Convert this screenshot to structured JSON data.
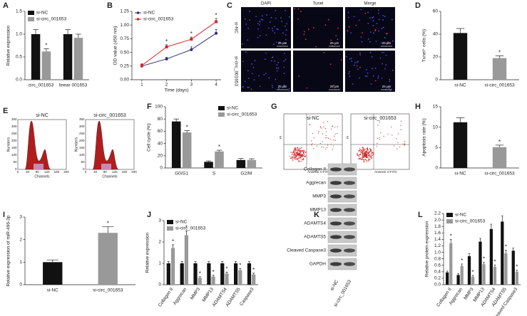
{
  "chart_data": [
    {
      "panel": "A",
      "type": "bar",
      "ylabel": "Relative expression",
      "categories": [
        "circ_001653",
        "linear 001653"
      ],
      "series": [
        {
          "name": "si-NC",
          "color": "#111111",
          "values": [
            1.0,
            1.0
          ],
          "errors": [
            0.1,
            0.1
          ],
          "annotations": [
            null,
            null
          ]
        },
        {
          "name": "si-circ_001653",
          "color": "#999999",
          "values": [
            0.62,
            0.92
          ],
          "errors": [
            0.06,
            0.08
          ],
          "annotations": [
            "*",
            null
          ]
        }
      ],
      "ylim": [
        0,
        1.5
      ],
      "yticks": [
        {
          "value": 0,
          "label": "0.0"
        },
        {
          "value": 0.5,
          "label": "0.5"
        },
        {
          "value": 1,
          "label": "1.0"
        },
        {
          "value": 1.5,
          "label": "1.5"
        }
      ],
      "legend": "top-left"
    },
    {
      "panel": "B",
      "type": "line",
      "xlabel": "Time (days)",
      "ylabel": "OD value (450 nm)",
      "x": [
        1,
        2,
        3,
        4
      ],
      "series": [
        {
          "name": "si-NC",
          "color": "#2b2b7a",
          "values": [
            0.25,
            0.38,
            0.55,
            0.85
          ],
          "errors": [
            0.03,
            0.03,
            0.05,
            0.07
          ],
          "annotations": [
            null,
            null,
            null,
            null
          ]
        },
        {
          "name": "si-circ_001653",
          "color": "#d62728",
          "values": [
            0.26,
            0.6,
            0.74,
            1.06
          ],
          "errors": [
            0.03,
            0.04,
            0.04,
            0.06
          ],
          "annotations": [
            null,
            "*",
            "*",
            "*"
          ]
        }
      ],
      "xlim": [
        0.6,
        4.2
      ],
      "xticks": [
        1,
        2,
        3,
        4
      ],
      "ylim": [
        0,
        1.25
      ],
      "yticks": [
        {
          "value": 0,
          "label": "0.00"
        },
        {
          "value": 0.25,
          "label": "0.25"
        },
        {
          "value": 0.5,
          "label": "0.50"
        },
        {
          "value": 0.75,
          "label": "0.75"
        },
        {
          "value": 1,
          "label": "1.00"
        },
        {
          "value": 1.25,
          "label": "1.25"
        }
      ],
      "legend": "top-left"
    },
    {
      "panel": "D",
      "type": "bar",
      "ylabel": "Tunel⁺ cells (%)",
      "categories": [
        "si-NC",
        "si-circ_001653"
      ],
      "values": [
        41,
        19
      ],
      "errors": [
        4,
        2
      ],
      "colors": [
        "#111111",
        "#999999"
      ],
      "annotations": [
        null,
        "*"
      ],
      "ylim": [
        0,
        60
      ],
      "yticks": [
        0,
        20,
        40,
        60
      ]
    },
    {
      "panel": "F",
      "type": "bar",
      "ylabel": "Cell cycle (%)",
      "categories": [
        "G0/G1",
        "S",
        "G2/M"
      ],
      "series": [
        {
          "name": "si-NC",
          "color": "#111111",
          "values": [
            76,
            10,
            13
          ],
          "errors": [
            4,
            1.5,
            2.5
          ],
          "annotations": [
            null,
            null,
            null
          ]
        },
        {
          "name": "si-circ_001653",
          "color": "#999999",
          "values": [
            58,
            27,
            13
          ],
          "errors": [
            3,
            2,
            2
          ],
          "annotations": [
            "*",
            "*",
            null
          ]
        }
      ],
      "ylim": [
        0,
        100
      ],
      "yticks": [
        0,
        20,
        40,
        60,
        80,
        100
      ],
      "legend": "top-right"
    },
    {
      "panel": "H",
      "type": "bar",
      "ylabel": "Apoptosis rate (%)",
      "categories": [
        "si-NC",
        "si-circ_001653"
      ],
      "values": [
        11.2,
        5.1
      ],
      "errors": [
        1.1,
        0.5
      ],
      "colors": [
        "#111111",
        "#999999"
      ],
      "annotations": [
        null,
        "*"
      ],
      "ylim": [
        0,
        15
      ],
      "yticks": [
        0,
        5,
        10,
        15
      ]
    },
    {
      "panel": "I",
      "type": "bar",
      "ylabel": "Relative expression of miR-496-3p",
      "categories": [
        "si-NC",
        "si-circ_001653"
      ],
      "values": [
        1.0,
        2.3
      ],
      "errors": [
        0.1,
        0.28
      ],
      "colors": [
        "#111111",
        "#999999"
      ],
      "annotations": [
        null,
        "*"
      ],
      "ylim": [
        0,
        3
      ],
      "yticks": [
        0,
        1,
        2,
        3
      ]
    },
    {
      "panel": "J",
      "type": "bar",
      "ylabel": "Relative expression",
      "categories": [
        "Collagen II",
        "Aggrecan",
        "MMP3",
        "MMP13",
        "ADAMTS4",
        "ADAMTS5",
        "Caspase3"
      ],
      "series": [
        {
          "name": "si-NC",
          "color": "#111111",
          "values": [
            1,
            1,
            1,
            1,
            1,
            1,
            1
          ],
          "errors": [
            0.08,
            0.08,
            0.08,
            0.08,
            0.08,
            0.08,
            0.08
          ],
          "annotations": [
            null,
            null,
            null,
            null,
            null,
            null,
            null
          ]
        },
        {
          "name": "si-circ_001653",
          "color": "#999999",
          "values": [
            1.72,
            2.32,
            0.32,
            0.38,
            0.52,
            0.68,
            0.48
          ],
          "errors": [
            0.15,
            0.2,
            0.05,
            0.06,
            0.06,
            0.08,
            0.06
          ],
          "annotations": [
            "*",
            "*",
            "*",
            "*",
            "*",
            "*",
            "*"
          ]
        }
      ],
      "ylim": [
        0,
        3
      ],
      "yticks": [
        0,
        1,
        2,
        3
      ],
      "legend": "top-left"
    },
    {
      "panel": "L",
      "type": "bar",
      "ylabel": "Relative protein expression",
      "categories": [
        "Collagen II",
        "Aggrecan",
        "MMP3",
        "MMP13",
        "ADAMTS4",
        "ADAMTS5",
        "Cleaved Caspase3"
      ],
      "series": [
        {
          "name": "si-NC",
          "color": "#111111",
          "values": [
            0.38,
            0.3,
            0.88,
            1.33,
            1.72,
            1.95,
            1.05
          ],
          "errors": [
            0.04,
            0.04,
            0.08,
            0.1,
            0.15,
            0.18,
            0.08
          ],
          "annotations": [
            null,
            null,
            null,
            null,
            null,
            null,
            null
          ]
        },
        {
          "name": "si-circ_001653",
          "color": "#999999",
          "values": [
            1.28,
            0.58,
            0.25,
            0.63,
            0.55,
            0.97,
            0.4
          ],
          "errors": [
            0.12,
            0.06,
            0.04,
            0.06,
            0.06,
            0.1,
            0.05
          ],
          "annotations": [
            "*",
            "*",
            "*",
            "*",
            "*",
            "*",
            "*"
          ]
        }
      ],
      "ylim": [
        0,
        2.2
      ],
      "yticks": [
        {
          "value": 0,
          "label": "0.0"
        },
        {
          "value": 0.2,
          "label": "0.2"
        },
        {
          "value": 0.4,
          "label": "0.4"
        },
        {
          "value": 0.6,
          "label": "0.6"
        },
        {
          "value": 0.8,
          "label": "0.8"
        },
        {
          "value": 1,
          "label": "1.0"
        },
        {
          "value": 1.2,
          "label": "1.2"
        },
        {
          "value": 1.4,
          "label": "1.4"
        },
        {
          "value": 1.6,
          "label": "1.6"
        },
        {
          "value": 1.8,
          "label": "1.8"
        },
        {
          "value": 2,
          "label": "2.0"
        },
        {
          "value": 2.2,
          "label": "2.2"
        }
      ],
      "legend": "top-left"
    }
  ],
  "images": {
    "microscopy": {
      "panel": "C",
      "columns": [
        "DAPI",
        "Tunel",
        "Merge"
      ],
      "rows": [
        "si-NC",
        "si-circ_001653"
      ],
      "scale_bar": "25 μm"
    },
    "cell_cycle": {
      "panel": "E",
      "titles": [
        "si-NC",
        "si-circ_001653"
      ],
      "ylabel": "Numbers",
      "xlabel": "Channels",
      "xticks": [
        "0",
        "40",
        "80",
        "120",
        "160",
        "200"
      ],
      "yticks": [
        "0",
        "50",
        "100",
        "150",
        "200",
        "250",
        "300",
        "350"
      ]
    },
    "apoptosis": {
      "panel": "G",
      "titles": [
        "si-NC",
        "si-circ_001653"
      ],
      "ylabel": "PI",
      "xlabel": "Annexin V-FITC"
    },
    "western_blot": {
      "panel": "K",
      "proteins": [
        "Collagen II",
        "Aggrecan",
        "MMP3",
        "MMP13",
        "ADAMTS4",
        "ADAMTS5",
        "Cleaved Caspase3",
        "GAPDH"
      ],
      "lanes": [
        "si-NC",
        "si-circ_001653"
      ]
    }
  }
}
